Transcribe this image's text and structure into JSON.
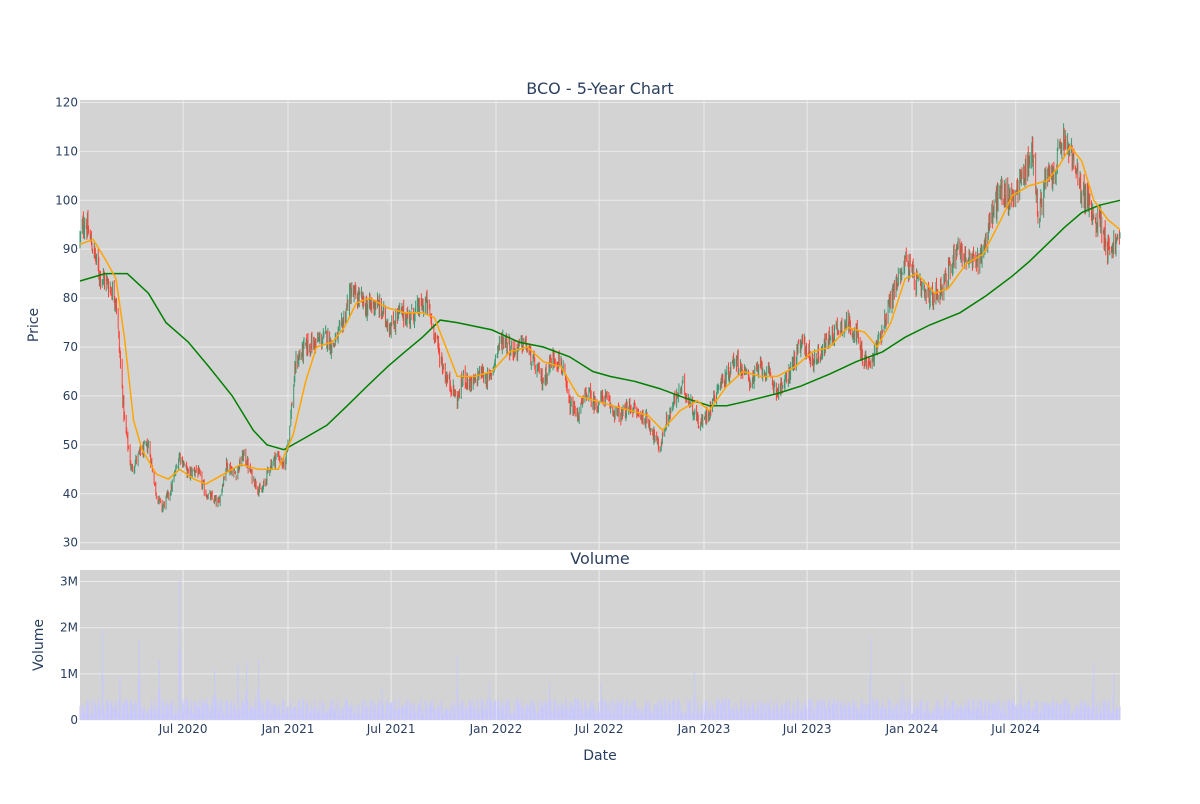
{
  "page": {
    "background": "#ffffff",
    "plot_background": "#d3d3d3",
    "grid_color": "#ebebeb",
    "text_color": "#2a3f5f"
  },
  "chart_data": [
    {
      "type": "candlestick",
      "title": "BCO - 5-Year Chart",
      "ylabel": "Price",
      "ylim": [
        28.5,
        120.5
      ],
      "yticks": [
        30,
        40,
        50,
        60,
        70,
        80,
        90,
        100,
        110,
        120
      ],
      "xlim": [
        "2020-01-02",
        "2024-12-31"
      ],
      "grid": true,
      "colors": {
        "increasing": "#3d9970",
        "decreasing": "#ff4136",
        "ma_short": "#ffa500",
        "ma_long": "#008000"
      },
      "close_anchors": [
        [
          "2020-01-02",
          92
        ],
        [
          "2020-01-10",
          96
        ],
        [
          "2020-01-25",
          90
        ],
        [
          "2020-02-05",
          85
        ],
        [
          "2020-02-20",
          83
        ],
        [
          "2020-03-05",
          80
        ],
        [
          "2020-03-12",
          68
        ],
        [
          "2020-03-20",
          55
        ],
        [
          "2020-04-01",
          45
        ],
        [
          "2020-04-15",
          48
        ],
        [
          "2020-05-01",
          50
        ],
        [
          "2020-05-15",
          40
        ],
        [
          "2020-05-25",
          37
        ],
        [
          "2020-06-10",
          41
        ],
        [
          "2020-06-25",
          48
        ],
        [
          "2020-07-10",
          44
        ],
        [
          "2020-07-25",
          45
        ],
        [
          "2020-08-10",
          40
        ],
        [
          "2020-09-01",
          38
        ],
        [
          "2020-09-15",
          46
        ],
        [
          "2020-10-01",
          44
        ],
        [
          "2020-10-15",
          48
        ],
        [
          "2020-11-01",
          43
        ],
        [
          "2020-11-15",
          40
        ],
        [
          "2020-12-01",
          46
        ],
        [
          "2020-12-15",
          48
        ],
        [
          "2020-12-25",
          45
        ],
        [
          "2021-01-05",
          55
        ],
        [
          "2021-01-15",
          67
        ],
        [
          "2021-02-01",
          70
        ],
        [
          "2021-02-20",
          71
        ],
        [
          "2021-03-10",
          72
        ],
        [
          "2021-03-20",
          70
        ],
        [
          "2021-04-05",
          74
        ],
        [
          "2021-04-20",
          81
        ],
        [
          "2021-05-05",
          80
        ],
        [
          "2021-05-20",
          78
        ],
        [
          "2021-06-05",
          79
        ],
        [
          "2021-06-20",
          76
        ],
        [
          "2021-07-01",
          74
        ],
        [
          "2021-07-15",
          77
        ],
        [
          "2021-08-01",
          76
        ],
        [
          "2021-08-20",
          78
        ],
        [
          "2021-09-01",
          79
        ],
        [
          "2021-09-15",
          73
        ],
        [
          "2021-09-25",
          68
        ],
        [
          "2021-10-05",
          64
        ],
        [
          "2021-10-15",
          62
        ],
        [
          "2021-10-25",
          59
        ],
        [
          "2021-11-05",
          64
        ],
        [
          "2021-11-20",
          62
        ],
        [
          "2021-12-05",
          65
        ],
        [
          "2021-12-20",
          63
        ],
        [
          "2022-01-05",
          70
        ],
        [
          "2022-01-15",
          72
        ],
        [
          "2022-02-01",
          69
        ],
        [
          "2022-02-20",
          71
        ],
        [
          "2022-03-10",
          66
        ],
        [
          "2022-03-25",
          63
        ],
        [
          "2022-04-10",
          68
        ],
        [
          "2022-04-25",
          67
        ],
        [
          "2022-05-10",
          58
        ],
        [
          "2022-05-25",
          56
        ],
        [
          "2022-06-10",
          61
        ],
        [
          "2022-06-25",
          58
        ],
        [
          "2022-07-10",
          60
        ],
        [
          "2022-07-25",
          57
        ],
        [
          "2022-08-10",
          56
        ],
        [
          "2022-08-25",
          58
        ],
        [
          "2022-09-10",
          56
        ],
        [
          "2022-09-25",
          55
        ],
        [
          "2022-10-05",
          52
        ],
        [
          "2022-10-15",
          49
        ],
        [
          "2022-10-25",
          54
        ],
        [
          "2022-11-10",
          59
        ],
        [
          "2022-11-25",
          62
        ],
        [
          "2022-12-10",
          58
        ],
        [
          "2022-12-25",
          54
        ],
        [
          "2023-01-10",
          57
        ],
        [
          "2023-01-25",
          62
        ],
        [
          "2023-02-10",
          64
        ],
        [
          "2023-02-25",
          68
        ],
        [
          "2023-03-10",
          65
        ],
        [
          "2023-03-25",
          63
        ],
        [
          "2023-04-10",
          66
        ],
        [
          "2023-04-25",
          64
        ],
        [
          "2023-05-10",
          61
        ],
        [
          "2023-05-25",
          63
        ],
        [
          "2023-06-10",
          68
        ],
        [
          "2023-06-25",
          71
        ],
        [
          "2023-07-10",
          67
        ],
        [
          "2023-07-25",
          69
        ],
        [
          "2023-08-10",
          72
        ],
        [
          "2023-08-25",
          74
        ],
        [
          "2023-09-10",
          75
        ],
        [
          "2023-09-25",
          73
        ],
        [
          "2023-10-05",
          68
        ],
        [
          "2023-10-20",
          66
        ],
        [
          "2023-11-05",
          72
        ],
        [
          "2023-11-20",
          78
        ],
        [
          "2023-12-05",
          83
        ],
        [
          "2023-12-20",
          88
        ],
        [
          "2024-01-05",
          84
        ],
        [
          "2024-01-20",
          81
        ],
        [
          "2024-02-05",
          80
        ],
        [
          "2024-02-20",
          82
        ],
        [
          "2024-03-05",
          85
        ],
        [
          "2024-03-20",
          91
        ],
        [
          "2024-04-05",
          88
        ],
        [
          "2024-04-20",
          87
        ],
        [
          "2024-05-05",
          90
        ],
        [
          "2024-05-20",
          97
        ],
        [
          "2024-06-05",
          102
        ],
        [
          "2024-06-20",
          100
        ],
        [
          "2024-07-05",
          103
        ],
        [
          "2024-07-20",
          107
        ],
        [
          "2024-08-01",
          110
        ],
        [
          "2024-08-10",
          95
        ],
        [
          "2024-08-20",
          104
        ],
        [
          "2024-09-05",
          105
        ],
        [
          "2024-09-20",
          112
        ],
        [
          "2024-10-05",
          110
        ],
        [
          "2024-10-20",
          103
        ],
        [
          "2024-11-05",
          100
        ],
        [
          "2024-11-15",
          95
        ],
        [
          "2024-11-25",
          97
        ],
        [
          "2024-12-10",
          90
        ],
        [
          "2024-12-31",
          92
        ]
      ],
      "ma_short_anchors": [
        [
          "2020-01-02",
          91
        ],
        [
          "2020-01-25",
          92
        ],
        [
          "2020-02-15",
          88
        ],
        [
          "2020-03-05",
          84
        ],
        [
          "2020-03-20",
          72
        ],
        [
          "2020-04-05",
          55
        ],
        [
          "2020-04-20",
          49
        ],
        [
          "2020-05-15",
          44
        ],
        [
          "2020-06-05",
          43
        ],
        [
          "2020-06-25",
          45
        ],
        [
          "2020-07-20",
          43
        ],
        [
          "2020-08-10",
          42
        ],
        [
          "2020-09-10",
          44
        ],
        [
          "2020-10-10",
          46
        ],
        [
          "2020-11-10",
          45
        ],
        [
          "2020-12-15",
          45
        ],
        [
          "2021-01-10",
          52
        ],
        [
          "2021-02-01",
          63
        ],
        [
          "2021-02-20",
          70
        ],
        [
          "2021-03-20",
          71
        ],
        [
          "2021-04-10",
          74
        ],
        [
          "2021-05-01",
          79
        ],
        [
          "2021-05-25",
          80
        ],
        [
          "2021-06-25",
          78
        ],
        [
          "2021-07-25",
          77
        ],
        [
          "2021-08-25",
          77
        ],
        [
          "2021-09-15",
          76
        ],
        [
          "2021-10-05",
          70
        ],
        [
          "2021-10-25",
          64
        ],
        [
          "2021-11-25",
          64
        ],
        [
          "2021-12-25",
          65
        ],
        [
          "2022-01-25",
          69
        ],
        [
          "2022-02-25",
          70
        ],
        [
          "2022-03-25",
          67
        ],
        [
          "2022-04-25",
          66
        ],
        [
          "2022-05-25",
          60
        ],
        [
          "2022-06-25",
          59
        ],
        [
          "2022-07-25",
          58
        ],
        [
          "2022-08-25",
          57
        ],
        [
          "2022-09-25",
          56
        ],
        [
          "2022-10-20",
          53
        ],
        [
          "2022-11-20",
          57
        ],
        [
          "2022-12-20",
          59
        ],
        [
          "2023-01-10",
          57
        ],
        [
          "2023-02-10",
          62
        ],
        [
          "2023-03-10",
          65
        ],
        [
          "2023-04-10",
          64
        ],
        [
          "2023-05-10",
          64
        ],
        [
          "2023-06-10",
          66
        ],
        [
          "2023-07-10",
          69
        ],
        [
          "2023-08-10",
          70
        ],
        [
          "2023-09-10",
          74
        ],
        [
          "2023-10-10",
          73
        ],
        [
          "2023-11-01",
          70
        ],
        [
          "2023-11-25",
          75
        ],
        [
          "2023-12-20",
          84
        ],
        [
          "2024-01-10",
          85
        ],
        [
          "2024-02-10",
          81
        ],
        [
          "2024-03-05",
          82
        ],
        [
          "2024-04-05",
          87
        ],
        [
          "2024-05-05",
          89
        ],
        [
          "2024-06-05",
          96
        ],
        [
          "2024-06-25",
          101
        ],
        [
          "2024-07-25",
          103
        ],
        [
          "2024-08-25",
          104
        ],
        [
          "2024-09-15",
          107
        ],
        [
          "2024-10-05",
          111
        ],
        [
          "2024-10-25",
          108
        ],
        [
          "2024-11-15",
          100
        ],
        [
          "2024-12-10",
          96
        ],
        [
          "2024-12-31",
          94
        ]
      ],
      "ma_long_anchors": [
        [
          "2020-01-02",
          83.5
        ],
        [
          "2020-02-15",
          85
        ],
        [
          "2020-03-25",
          85
        ],
        [
          "2020-05-01",
          81
        ],
        [
          "2020-06-01",
          75
        ],
        [
          "2020-07-10",
          71
        ],
        [
          "2020-08-15",
          66
        ],
        [
          "2020-09-25",
          60
        ],
        [
          "2020-11-01",
          53
        ],
        [
          "2020-11-25",
          50
        ],
        [
          "2020-12-25",
          49
        ],
        [
          "2021-02-01",
          51.5
        ],
        [
          "2021-03-10",
          54
        ],
        [
          "2021-04-15",
          58
        ],
        [
          "2021-05-20",
          62
        ],
        [
          "2021-06-25",
          66
        ],
        [
          "2021-07-25",
          69
        ],
        [
          "2021-08-25",
          72
        ],
        [
          "2021-09-25",
          75.5
        ],
        [
          "2021-10-25",
          75
        ],
        [
          "2021-12-25",
          73.5
        ],
        [
          "2022-02-10",
          71
        ],
        [
          "2022-03-25",
          70
        ],
        [
          "2022-05-10",
          68
        ],
        [
          "2022-06-20",
          65
        ],
        [
          "2022-07-20",
          64
        ],
        [
          "2022-09-01",
          63
        ],
        [
          "2022-10-15",
          61.5
        ],
        [
          "2022-12-01",
          59.5
        ],
        [
          "2023-01-10",
          58
        ],
        [
          "2023-02-10",
          58
        ],
        [
          "2023-03-20",
          59
        ],
        [
          "2023-05-10",
          60.5
        ],
        [
          "2023-06-20",
          62
        ],
        [
          "2023-08-10",
          64.5
        ],
        [
          "2023-09-25",
          67
        ],
        [
          "2023-11-10",
          69
        ],
        [
          "2023-12-20",
          72
        ],
        [
          "2024-02-01",
          74.5
        ],
        [
          "2024-03-25",
          77
        ],
        [
          "2024-05-10",
          80.5
        ],
        [
          "2024-06-25",
          84.5
        ],
        [
          "2024-07-25",
          87.5
        ],
        [
          "2024-08-25",
          91
        ],
        [
          "2024-09-25",
          94.5
        ],
        [
          "2024-10-25",
          97.5
        ],
        [
          "2024-11-25",
          99
        ],
        [
          "2024-12-31",
          100
        ]
      ],
      "x_ticks": [
        "Jul 2020",
        "Jan 2021",
        "Jul 2021",
        "Jan 2022",
        "Jul 2022",
        "Jan 2023",
        "Jul 2023",
        "Jan 2024",
        "Jul 2024"
      ]
    },
    {
      "type": "bar",
      "title": "Volume",
      "ylabel": "Volume",
      "xlabel": "Date",
      "ylim": [
        0,
        3250000
      ],
      "yticks": [
        0,
        1000000,
        2000000,
        3000000
      ],
      "ytick_labels": [
        "0",
        "1M",
        "2M",
        "3M"
      ],
      "xlim": [
        "2020-01-02",
        "2024-12-31"
      ],
      "bar_color": "#c8c8ff",
      "base_level": 350000,
      "spikes": [
        [
          "2020-02-10",
          1950000
        ],
        [
          "2020-03-12",
          950000
        ],
        [
          "2020-04-15",
          1750000
        ],
        [
          "2020-05-20",
          1300000
        ],
        [
          "2020-06-25",
          3050000
        ],
        [
          "2020-08-25",
          1100000
        ],
        [
          "2020-10-05",
          1200000
        ],
        [
          "2020-10-20",
          1250000
        ],
        [
          "2020-11-10",
          1300000
        ],
        [
          "2021-02-20",
          500000
        ],
        [
          "2021-06-15",
          700000
        ],
        [
          "2021-10-25",
          1400000
        ],
        [
          "2021-12-20",
          800000
        ],
        [
          "2022-04-05",
          800000
        ],
        [
          "2022-07-05",
          800000
        ],
        [
          "2022-12-15",
          1050000
        ],
        [
          "2023-09-10",
          550000
        ],
        [
          "2023-10-20",
          1800000
        ],
        [
          "2023-12-15",
          800000
        ],
        [
          "2024-03-01",
          550000
        ],
        [
          "2024-07-10",
          750000
        ],
        [
          "2024-11-15",
          1200000
        ],
        [
          "2024-12-20",
          1000000
        ]
      ],
      "x_ticks": [
        "Jul 2020",
        "Jan 2021",
        "Jul 2021",
        "Jan 2022",
        "Jul 2022",
        "Jan 2023",
        "Jul 2023",
        "Jan 2024",
        "Jul 2024"
      ]
    }
  ]
}
